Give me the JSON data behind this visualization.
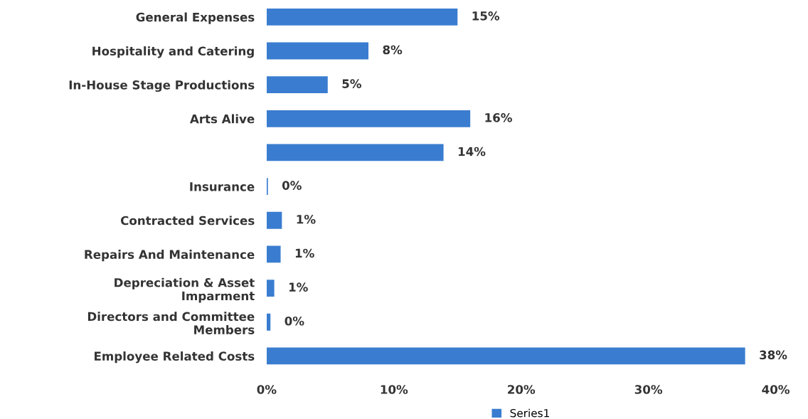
{
  "chart_data": {
    "type": "bar",
    "orientation": "horizontal",
    "categories": [
      "General Expenses",
      "Hospitality and Catering",
      "In-House Stage Productions",
      "Arts Alive",
      null,
      "Insurance",
      "Contracted Services",
      "Repairs And Maintenance",
      "Depreciation & Asset\nImparment",
      "Directors and Committee\nMembers",
      "Employee Related Costs"
    ],
    "series": [
      {
        "name": "Series1",
        "color": "#3a7dd0",
        "values": [
          15.0,
          8.0,
          4.8,
          16.0,
          13.9,
          0.1,
          1.2,
          1.1,
          0.6,
          0.3,
          37.6
        ],
        "value_labels": [
          "15%",
          "8%",
          "5%",
          "16%",
          "14%",
          "0%",
          "1%",
          "1%",
          "1%",
          "0%",
          "38%"
        ]
      }
    ],
    "xlim": [
      0,
      40
    ],
    "xticks": [
      {
        "value": 0,
        "label": "0%"
      },
      {
        "value": 10,
        "label": "10%"
      },
      {
        "value": 20,
        "label": "20%"
      },
      {
        "value": 30,
        "label": "30%"
      },
      {
        "value": 40,
        "label": "40%"
      }
    ],
    "legend": "bottom",
    "grid": false
  }
}
